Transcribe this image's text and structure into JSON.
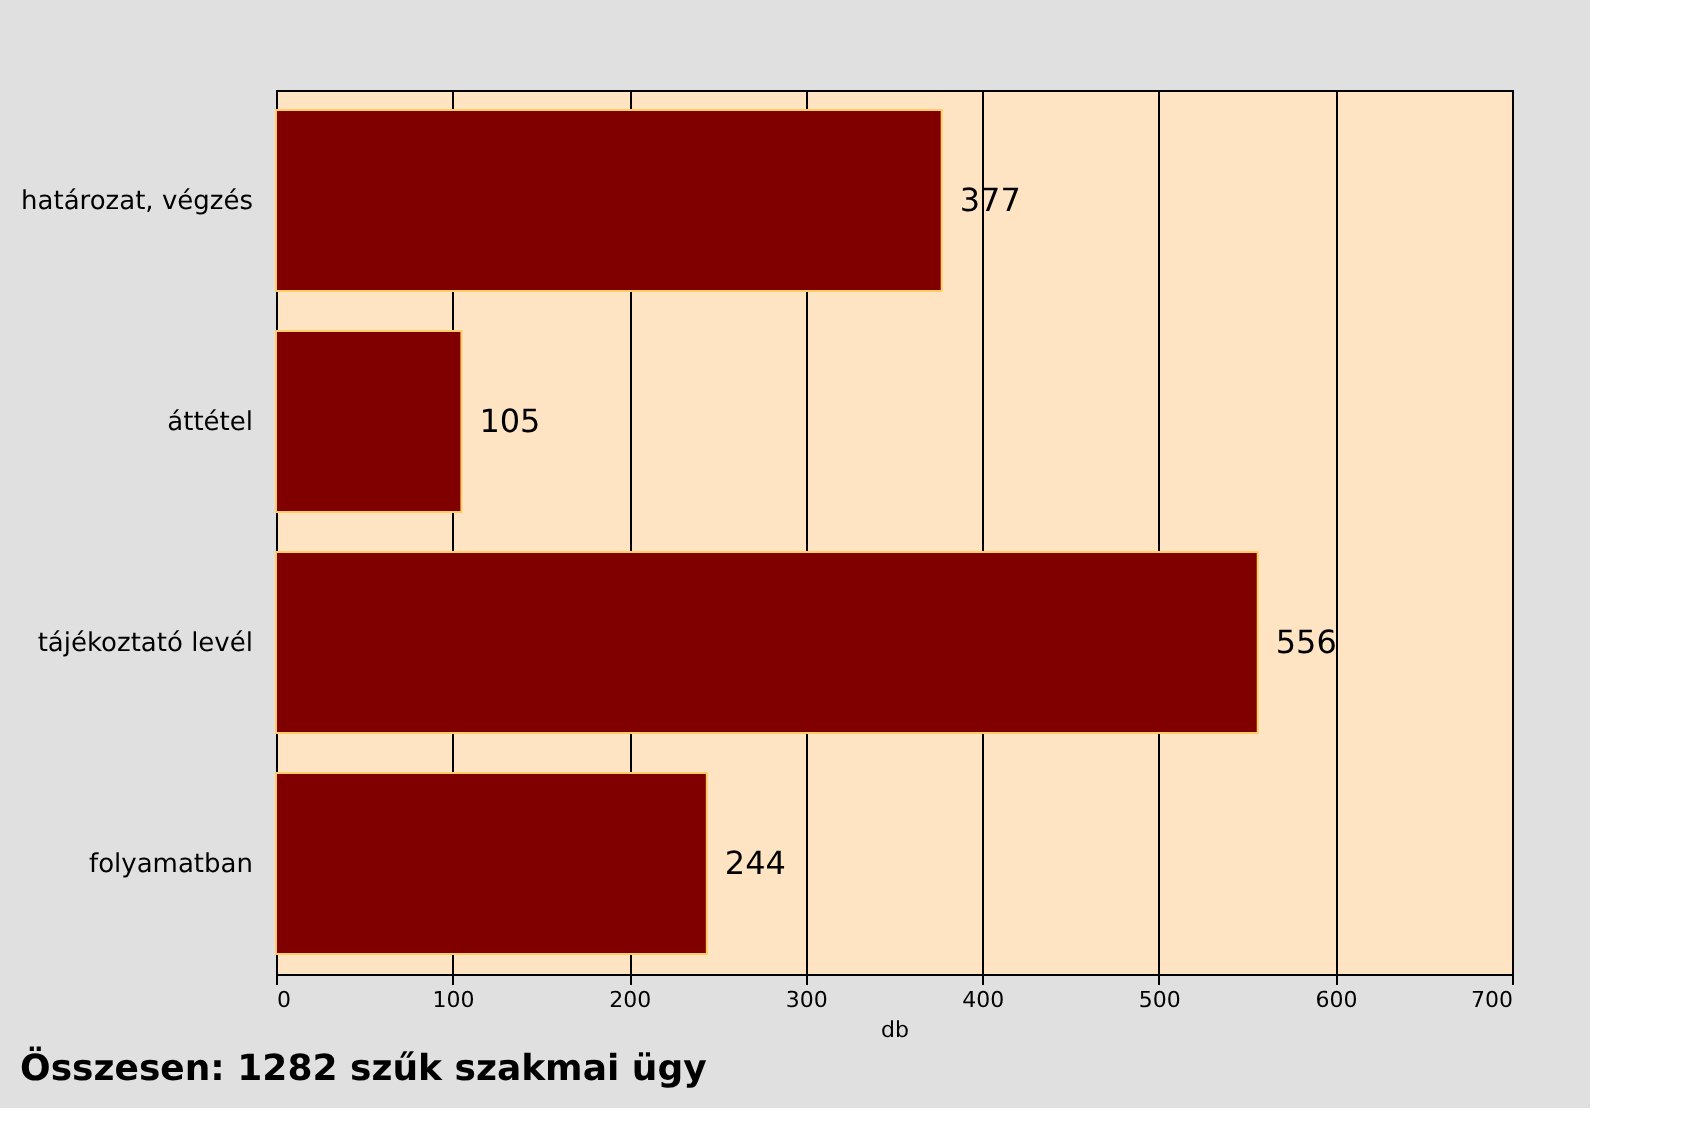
{
  "chart_data": {
    "type": "bar",
    "orientation": "horizontal",
    "categories": [
      "határozat, végzés",
      "áttétel",
      "tájékoztató levél",
      "folyamatban"
    ],
    "values": [
      377,
      105,
      556,
      244
    ],
    "color": "#800000",
    "xlim": [
      0,
      700
    ],
    "xticks": [
      0,
      100,
      200,
      300,
      400,
      500,
      600,
      700
    ],
    "xlabel": "db",
    "grid": "x",
    "data_labels": true,
    "annotations": [
      "Összesen: 1282 szűk szakmai ügy"
    ]
  }
}
